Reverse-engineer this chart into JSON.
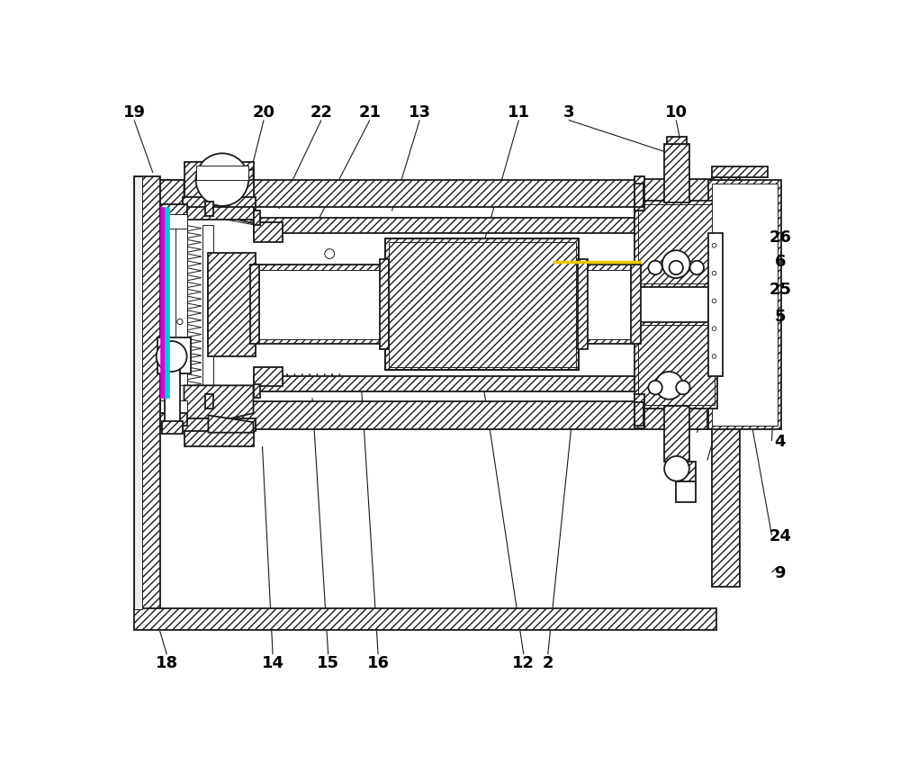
{
  "bg": "#ffffff",
  "lc": "#1a1a1a",
  "label_fs": 13,
  "lw_main": 1.3,
  "lw_thin": 0.7,
  "yellow": "#e8c800",
  "magenta": "#cc00cc",
  "cyan": "#00aaaa",
  "top_labels": {
    "19": 28,
    "20": 215,
    "22": 298,
    "21": 368,
    "13": 440,
    "11": 583,
    "3": 655,
    "10": 810
  },
  "right_labels": {
    "9": 178,
    "24": 232,
    "4": 368,
    "5": 548,
    "25": 588,
    "6": 628,
    "26": 663
  },
  "bottom_labels": {
    "18": 75,
    "14": 228,
    "15": 308,
    "16": 380,
    "12": 590,
    "2": 625
  }
}
